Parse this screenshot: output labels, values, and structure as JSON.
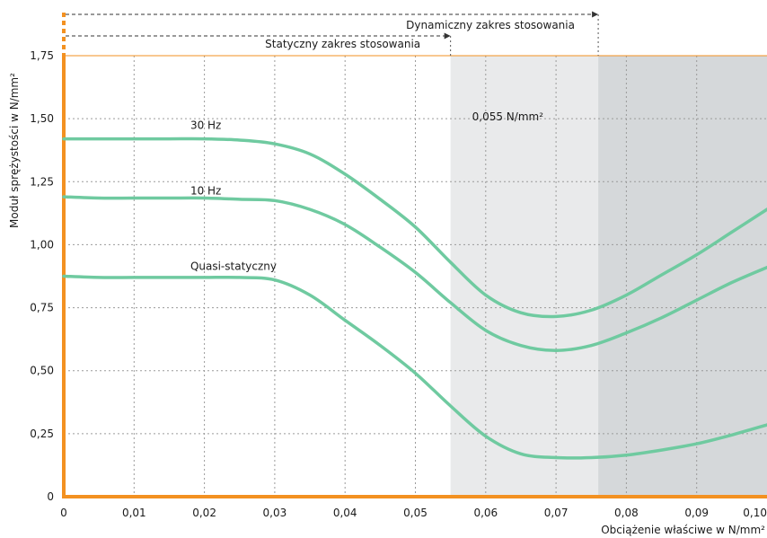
{
  "chart_data": {
    "type": "line",
    "xlabel": "Obciążenie właściwe w N/mm²",
    "ylabel": "Moduł sprężystości w N/mm²",
    "xlim": [
      0,
      0.1
    ],
    "ylim": [
      0,
      1.75
    ],
    "x_ticks": [
      {
        "value": 0,
        "label": "0"
      },
      {
        "value": 0.01,
        "label": "0,01"
      },
      {
        "value": 0.02,
        "label": "0,02"
      },
      {
        "value": 0.03,
        "label": "0,03"
      },
      {
        "value": 0.04,
        "label": "0,04"
      },
      {
        "value": 0.05,
        "label": "0,05"
      },
      {
        "value": 0.06,
        "label": "0,06"
      },
      {
        "value": 0.07,
        "label": "0,07"
      },
      {
        "value": 0.08,
        "label": "0,08"
      },
      {
        "value": 0.09,
        "label": "0,09"
      },
      {
        "value": 0.1,
        "label": "0,10"
      }
    ],
    "y_ticks": [
      {
        "value": 0,
        "label": "0"
      },
      {
        "value": 0.25,
        "label": "0,25"
      },
      {
        "value": 0.5,
        "label": "0,50"
      },
      {
        "value": 0.75,
        "label": "0,75"
      },
      {
        "value": 1.0,
        "label": "1,00"
      },
      {
        "value": 1.25,
        "label": "1,25"
      },
      {
        "value": 1.5,
        "label": "1,50"
      },
      {
        "value": 1.75,
        "label": "1,75"
      }
    ],
    "grid": true,
    "regions": [
      {
        "from": 0.055,
        "to": 0.076,
        "color": "#e9eaeb",
        "label": "0,055 N/mm²"
      },
      {
        "from": 0.076,
        "to": 0.1,
        "color": "#d5d8da"
      }
    ],
    "ranges": [
      {
        "label": "Statyczny zakres stosowania",
        "from": 0,
        "to": 0.055
      },
      {
        "label": "Dynamiczny zakres stosowania",
        "from": 0,
        "to": 0.076
      }
    ],
    "series": [
      {
        "name": "30 Hz",
        "color": "#6fcaa0",
        "label_at": [
          0.018,
          1.46
        ],
        "points": [
          [
            0,
            1.42
          ],
          [
            0.005,
            1.42
          ],
          [
            0.01,
            1.42
          ],
          [
            0.015,
            1.42
          ],
          [
            0.02,
            1.42
          ],
          [
            0.025,
            1.415
          ],
          [
            0.03,
            1.4
          ],
          [
            0.035,
            1.36
          ],
          [
            0.04,
            1.28
          ],
          [
            0.045,
            1.18
          ],
          [
            0.05,
            1.07
          ],
          [
            0.055,
            0.93
          ],
          [
            0.06,
            0.8
          ],
          [
            0.065,
            0.73
          ],
          [
            0.07,
            0.715
          ],
          [
            0.075,
            0.74
          ],
          [
            0.08,
            0.8
          ],
          [
            0.085,
            0.88
          ],
          [
            0.09,
            0.96
          ],
          [
            0.095,
            1.05
          ],
          [
            0.1,
            1.14
          ]
        ]
      },
      {
        "name": "10 Hz",
        "color": "#6fcaa0",
        "label_at": [
          0.018,
          1.2
        ],
        "points": [
          [
            0,
            1.19
          ],
          [
            0.005,
            1.185
          ],
          [
            0.01,
            1.185
          ],
          [
            0.015,
            1.185
          ],
          [
            0.02,
            1.185
          ],
          [
            0.025,
            1.18
          ],
          [
            0.03,
            1.175
          ],
          [
            0.035,
            1.14
          ],
          [
            0.04,
            1.08
          ],
          [
            0.045,
            0.99
          ],
          [
            0.05,
            0.89
          ],
          [
            0.055,
            0.77
          ],
          [
            0.06,
            0.66
          ],
          [
            0.065,
            0.6
          ],
          [
            0.07,
            0.58
          ],
          [
            0.075,
            0.6
          ],
          [
            0.08,
            0.65
          ],
          [
            0.085,
            0.71
          ],
          [
            0.09,
            0.78
          ],
          [
            0.095,
            0.85
          ],
          [
            0.1,
            0.91
          ]
        ]
      },
      {
        "name": "Quasi-statyczny",
        "color": "#6fcaa0",
        "label_at": [
          0.018,
          0.9
        ],
        "points": [
          [
            0,
            0.875
          ],
          [
            0.005,
            0.87
          ],
          [
            0.01,
            0.87
          ],
          [
            0.015,
            0.87
          ],
          [
            0.02,
            0.87
          ],
          [
            0.025,
            0.87
          ],
          [
            0.03,
            0.86
          ],
          [
            0.035,
            0.8
          ],
          [
            0.04,
            0.7
          ],
          [
            0.045,
            0.6
          ],
          [
            0.05,
            0.49
          ],
          [
            0.055,
            0.36
          ],
          [
            0.06,
            0.24
          ],
          [
            0.065,
            0.17
          ],
          [
            0.07,
            0.155
          ],
          [
            0.075,
            0.155
          ],
          [
            0.08,
            0.165
          ],
          [
            0.085,
            0.185
          ],
          [
            0.09,
            0.21
          ],
          [
            0.095,
            0.245
          ],
          [
            0.1,
            0.285
          ]
        ]
      }
    ]
  },
  "colors": {
    "axis": "#f39121",
    "grid": "#9a9a9a",
    "curve": "#6fcaa0"
  }
}
